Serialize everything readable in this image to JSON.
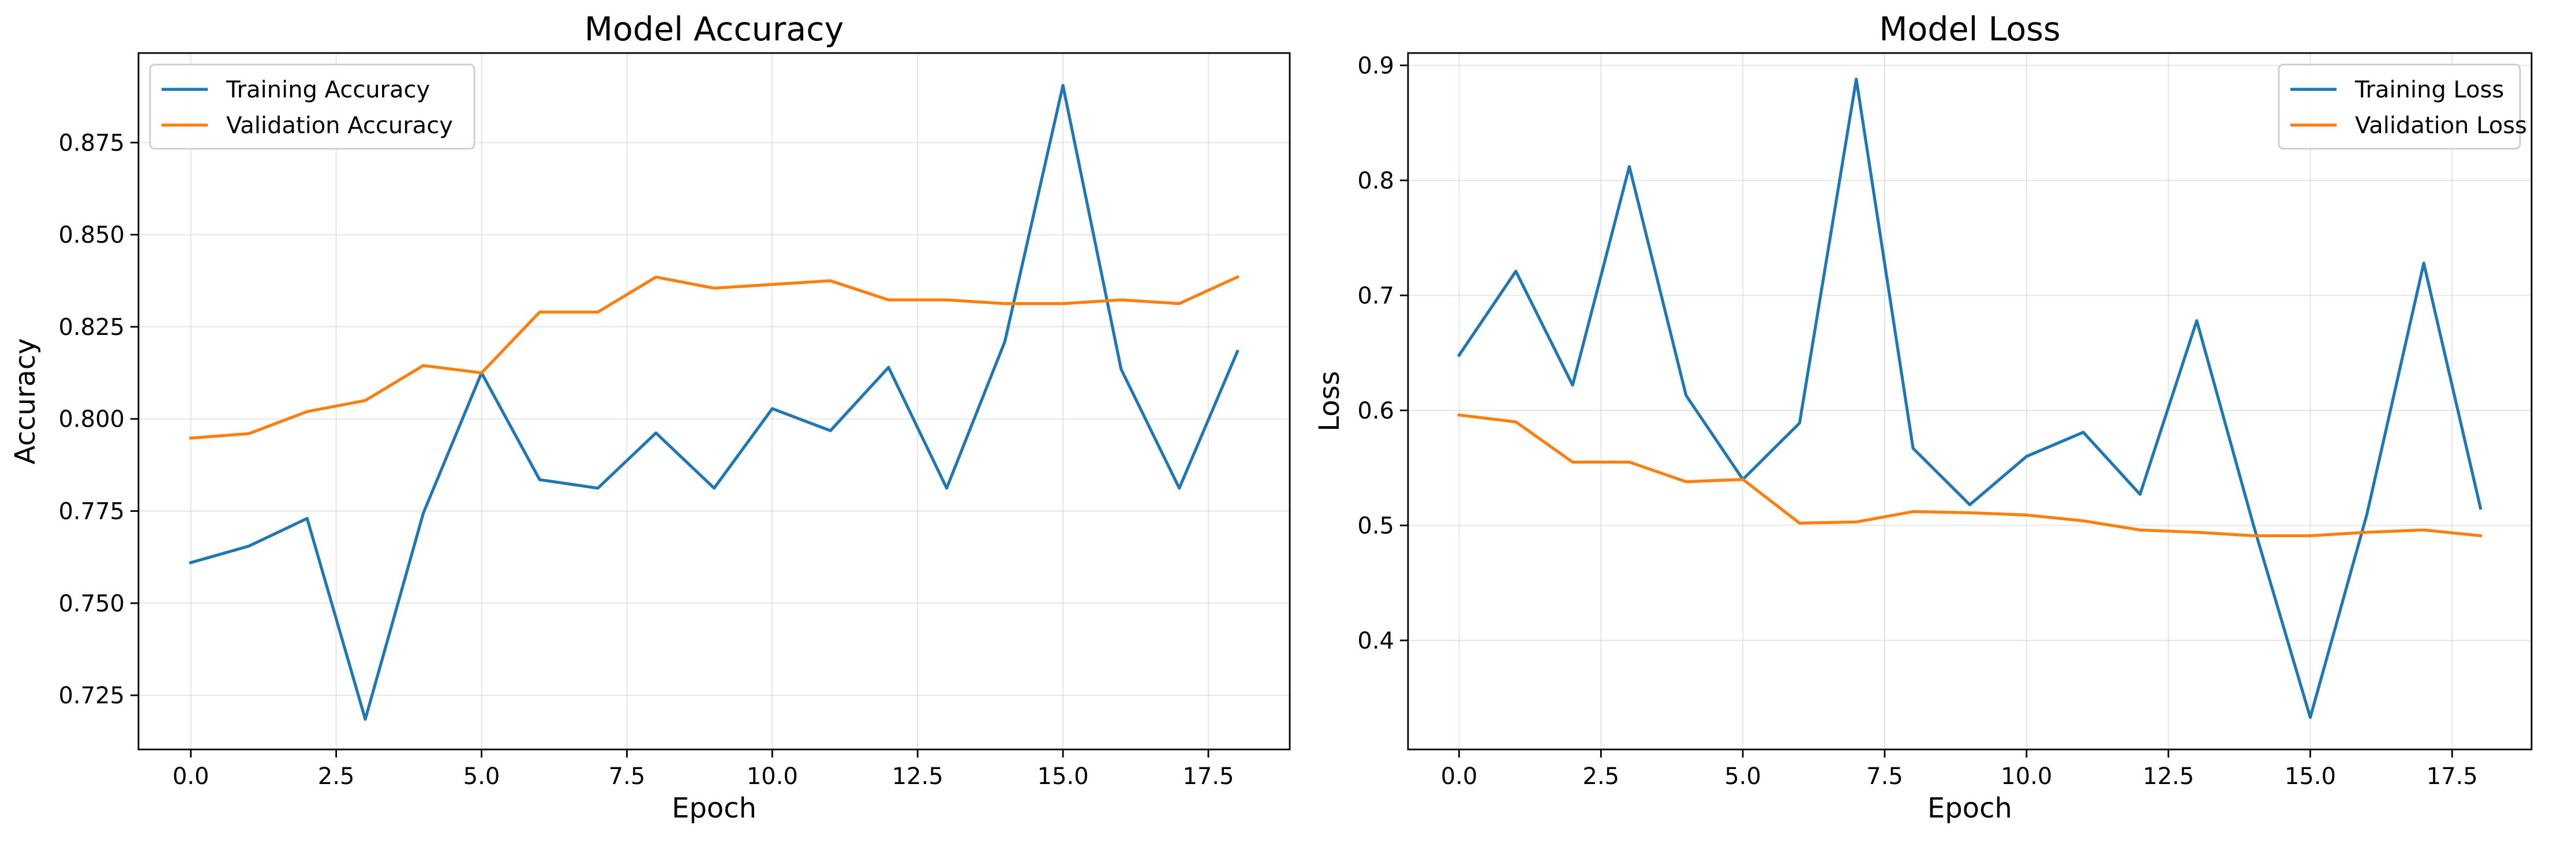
{
  "chart_data": [
    {
      "type": "line",
      "title": "Model Accuracy",
      "xlabel": "Epoch",
      "ylabel": "Accuracy",
      "xlim": [
        -0.9,
        18.9
      ],
      "ylim": [
        0.7103,
        0.8993
      ],
      "x_ticks": [
        0.0,
        2.5,
        5.0,
        7.5,
        10.0,
        12.5,
        15.0,
        17.5
      ],
      "x_tick_labels": [
        "0.0",
        "2.5",
        "5.0",
        "7.5",
        "10.0",
        "12.5",
        "15.0",
        "17.5"
      ],
      "y_ticks": [
        0.725,
        0.75,
        0.775,
        0.8,
        0.825,
        0.85,
        0.875
      ],
      "y_tick_labels": [
        "0.725",
        "0.750",
        "0.775",
        "0.800",
        "0.825",
        "0.850",
        "0.875"
      ],
      "grid": true,
      "legend_position": "upper-left",
      "x": [
        0,
        1,
        2,
        3,
        4,
        5,
        6,
        7,
        8,
        9,
        10,
        11,
        12,
        13,
        14,
        15,
        16,
        17,
        18
      ],
      "series": [
        {
          "name": "Training Accuracy",
          "color": "#1f77b4",
          "values": [
            0.761,
            0.7655,
            0.773,
            0.7185,
            0.7745,
            0.8125,
            0.7835,
            0.7812,
            0.7962,
            0.7812,
            0.8028,
            0.7968,
            0.814,
            0.7812,
            0.821,
            0.8905,
            0.8135,
            0.7812,
            0.8183
          ]
        },
        {
          "name": "Validation Accuracy",
          "color": "#ff7f0e",
          "values": [
            0.7948,
            0.796,
            0.802,
            0.805,
            0.8145,
            0.8125,
            0.829,
            0.829,
            0.8385,
            0.8355,
            0.8365,
            0.8375,
            0.8323,
            0.8323,
            0.8313,
            0.8313,
            0.8323,
            0.8313,
            0.8385
          ]
        }
      ]
    },
    {
      "type": "line",
      "title": "Model Loss",
      "xlabel": "Epoch",
      "ylabel": "Loss",
      "xlim": [
        -0.9,
        18.9
      ],
      "ylim": [
        0.3052,
        0.9107
      ],
      "x_ticks": [
        0.0,
        2.5,
        5.0,
        7.5,
        10.0,
        12.5,
        15.0,
        17.5
      ],
      "x_tick_labels": [
        "0.0",
        "2.5",
        "5.0",
        "7.5",
        "10.0",
        "12.5",
        "15.0",
        "17.5"
      ],
      "y_ticks": [
        0.4,
        0.5,
        0.6,
        0.7,
        0.8,
        0.9
      ],
      "y_tick_labels": [
        "0.4",
        "0.5",
        "0.6",
        "0.7",
        "0.8",
        "0.9"
      ],
      "grid": true,
      "legend_position": "upper-right",
      "x": [
        0,
        1,
        2,
        3,
        4,
        5,
        6,
        7,
        8,
        9,
        10,
        11,
        12,
        13,
        14,
        15,
        16,
        17,
        18
      ],
      "series": [
        {
          "name": "Training Loss",
          "color": "#1f77b4",
          "values": [
            0.648,
            0.721,
            0.622,
            0.812,
            0.613,
            0.54,
            0.589,
            0.888,
            0.567,
            0.518,
            0.56,
            0.581,
            0.527,
            0.678,
            0.5,
            0.333,
            0.51,
            0.728,
            0.515
          ]
        },
        {
          "name": "Validation Loss",
          "color": "#ff7f0e",
          "values": [
            0.596,
            0.59,
            0.555,
            0.555,
            0.538,
            0.54,
            0.502,
            0.503,
            0.512,
            0.511,
            0.509,
            0.504,
            0.496,
            0.494,
            0.491,
            0.491,
            0.494,
            0.496,
            0.491
          ]
        }
      ]
    }
  ]
}
